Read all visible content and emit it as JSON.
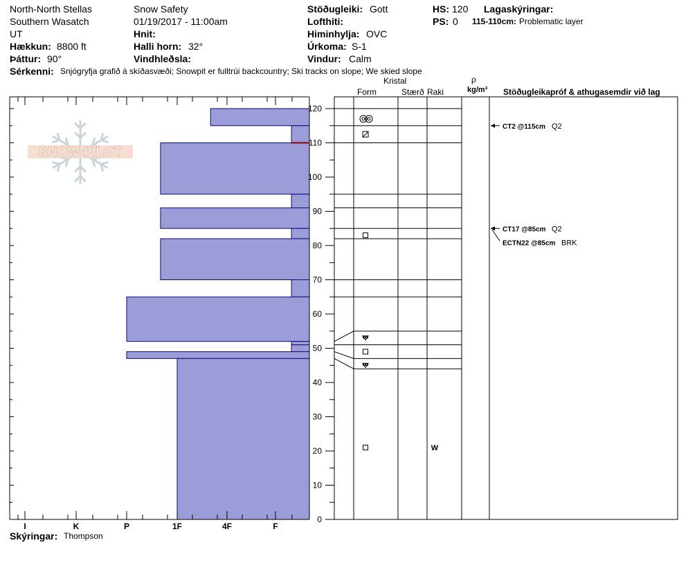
{
  "header": {
    "location1": "North-North Stellas",
    "location2": "Southern Wasatch",
    "state": "UT",
    "elevation_label": "Hækkun:",
    "elevation_value": "8800 ft",
    "aspect_label": "Þáttur:",
    "aspect_value": "90°",
    "org": "Snow Safety",
    "datetime": "01/19/2017 - 11:00am",
    "coords_label": "Hnit:",
    "slope_label": "Halli horn:",
    "slope_value": "32°",
    "wind_loading_label": "Vindhleðsla:",
    "stability_label": "Stöðugleiki:",
    "stability_value": "Gott",
    "air_temp_label": "Lofthiti:",
    "sky_label": "Himinhylja:",
    "sky_value": "OVC",
    "precip_label": "Úrkoma:",
    "precip_value": "S-1",
    "wind_label": "Vindur:",
    "wind_value": "Calm",
    "hs_label": "HS:",
    "hs_value": "120",
    "ps_label": "PS:",
    "ps_value": "0",
    "layer_notes_label": "Lagaskýringar:",
    "layer_note_range": "115-110cm:",
    "layer_note_text": "Problematic layer",
    "features_label": "Sérkenni:",
    "features_text": "Snjógryfja grafið á skíðasvæði; Snowpit er fulltrúi backcountry; Ski tracks on slope; We skied slope"
  },
  "logo_text": "SNOW PILOT",
  "columns": {
    "kristal": "Kristal",
    "form": "Form",
    "size": "Stærð",
    "moisture": "Raki",
    "rho": "ρ",
    "density_unit": "kg/m³",
    "tests": "Stöðugleikapróf & athugasemdir við lag"
  },
  "footer": {
    "notes_label": "Skýringar:",
    "notes_value": "Thompson"
  },
  "chart_data": {
    "type": "bar",
    "orientation": "horizontal",
    "title": "",
    "xlabel": "",
    "ylabel": "",
    "hardness_categories": [
      "I",
      "K",
      "P",
      "1F",
      "4F",
      "F"
    ],
    "ylim": [
      0,
      120
    ],
    "yticks": [
      0,
      10,
      20,
      30,
      40,
      50,
      60,
      70,
      80,
      90,
      100,
      110,
      120
    ],
    "layers": [
      {
        "top": 120,
        "bottom": 115,
        "hardness": "4F-"
      },
      {
        "top": 115,
        "bottom": 110,
        "hardness": "F+"
      },
      {
        "top": 110,
        "bottom": 95,
        "hardness": "1F-"
      },
      {
        "top": 95,
        "bottom": 91,
        "hardness": "F+"
      },
      {
        "top": 91,
        "bottom": 85,
        "hardness": "1F-"
      },
      {
        "top": 85,
        "bottom": 82,
        "hardness": "F+"
      },
      {
        "top": 82,
        "bottom": 70,
        "hardness": "1F-"
      },
      {
        "top": 70,
        "bottom": 65,
        "hardness": "F+"
      },
      {
        "top": 65,
        "bottom": 52,
        "hardness": "P"
      },
      {
        "top": 52,
        "bottom": 51,
        "hardness": "F+"
      },
      {
        "top": 51,
        "bottom": 49,
        "hardness": "F+"
      },
      {
        "top": 49,
        "bottom": 47,
        "hardness": "P"
      },
      {
        "top": 47,
        "bottom": 0,
        "hardness": "1F"
      }
    ],
    "problem_layer_depth": 110,
    "layer_grid": {
      "boundaries": [
        120,
        115,
        110,
        95,
        91,
        85,
        82,
        70,
        65,
        55,
        51,
        47,
        44
      ],
      "grains": [
        {
          "depth": 117,
          "symbol": "graupel-icon"
        },
        {
          "depth": 112.5,
          "symbol": "faceted-rounded-icon"
        },
        {
          "depth": 83,
          "symbol": "faceted-icon"
        },
        {
          "depth": 53,
          "symbol": "depth-hoar-icon"
        },
        {
          "depth": 49,
          "symbol": "faceted-icon"
        },
        {
          "depth": 45,
          "symbol": "depth-hoar-icon"
        },
        {
          "depth": 21,
          "symbol": "faceted-icon"
        }
      ],
      "moisture": [
        {
          "depth": 21,
          "value": "W"
        }
      ]
    },
    "tests": [
      {
        "depth": 115,
        "label": "CT2 @115cm",
        "result": "Q2"
      },
      {
        "depth": 85,
        "label": "CT17 @85cm",
        "result": "Q2"
      },
      {
        "depth": 85,
        "label": "ECTN22 @85cm",
        "result": "BRK"
      }
    ],
    "colors": {
      "bar_fill": "#9c9cd8",
      "bar_stroke": "#0a0a7a",
      "problem_line": "#8b0000"
    }
  }
}
